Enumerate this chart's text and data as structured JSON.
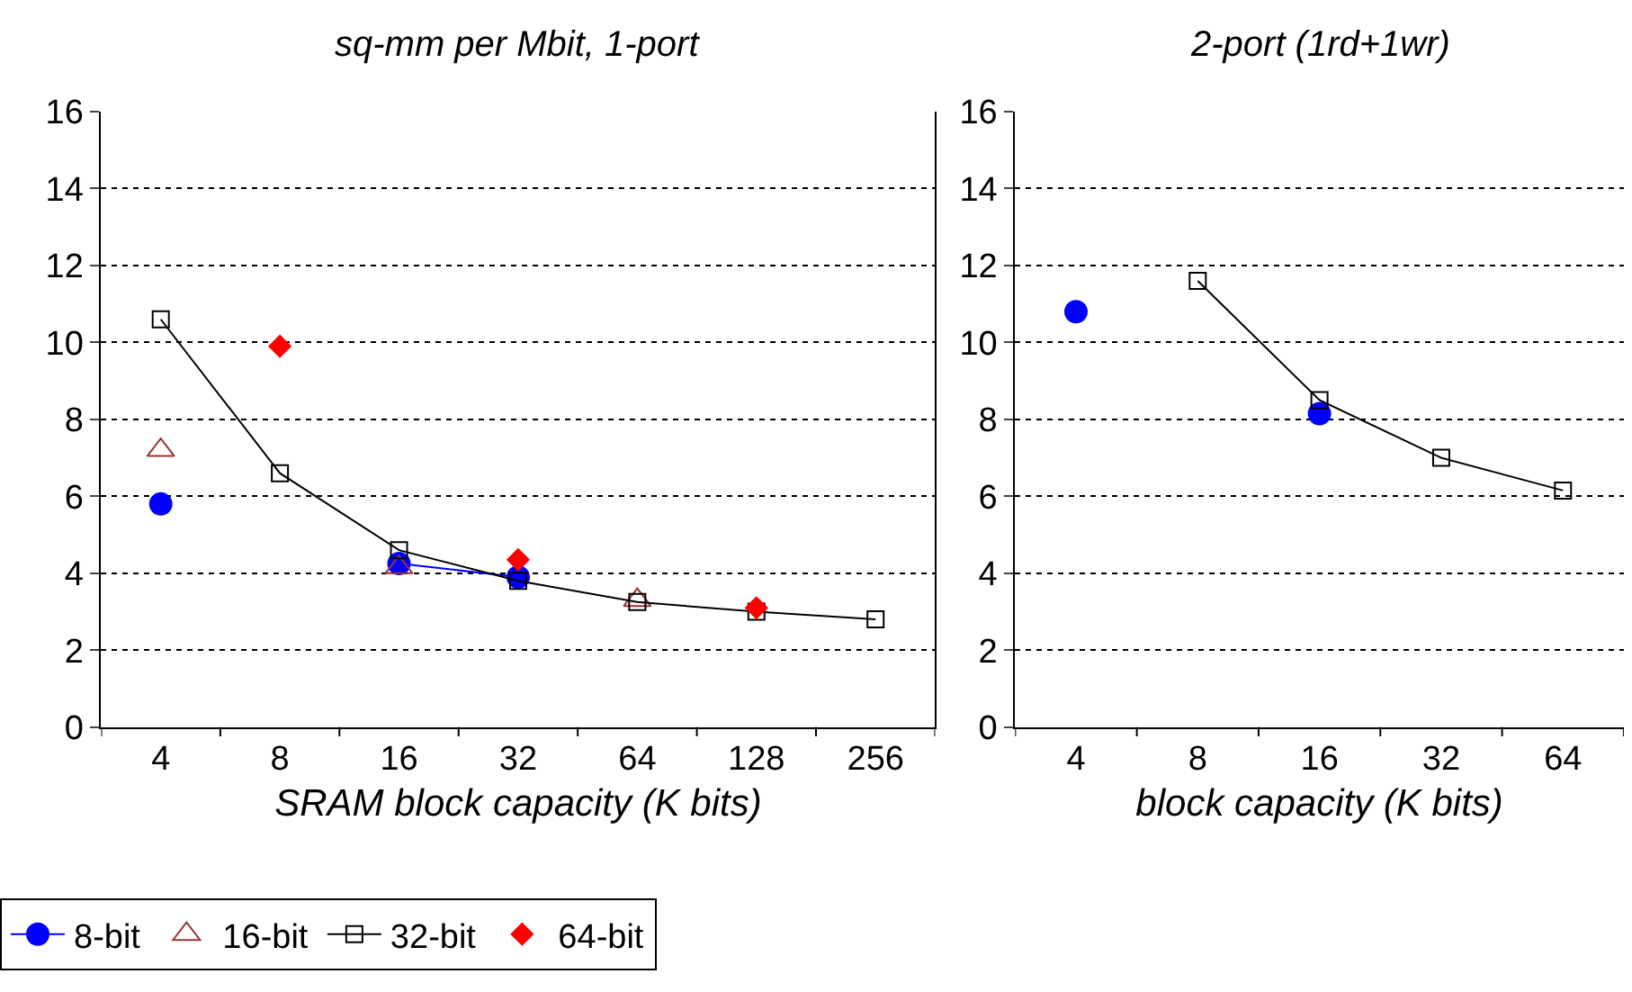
{
  "chart_data": [
    {
      "type": "line",
      "title": "sq-mm per Mbit, 1-port",
      "xlabel": "SRAM block capacity (K bits)",
      "categories": [
        "4",
        "8",
        "16",
        "32",
        "64",
        "128",
        "256"
      ],
      "ylim": [
        0,
        16
      ],
      "yticks": [
        0,
        2,
        4,
        6,
        8,
        10,
        12,
        14,
        16
      ],
      "grid": "y",
      "legend": "bottom left",
      "series": [
        {
          "name": "8-bit",
          "color": "#0000ff",
          "marker": "circle",
          "values": [
            5.8,
            null,
            4.25,
            3.9,
            null,
            null,
            null
          ]
        },
        {
          "name": "16-bit",
          "type": "scatter",
          "color": "#993333",
          "marker": "triangle",
          "values": [
            7.2,
            null,
            4.15,
            null,
            3.3,
            null,
            null
          ]
        },
        {
          "name": "32-bit",
          "color": "#000000",
          "marker": "square",
          "values": [
            10.6,
            6.6,
            4.6,
            3.8,
            3.25,
            3.0,
            2.8
          ]
        },
        {
          "name": "64-bit",
          "type": "scatter",
          "color": "#ff0000",
          "marker": "diamond",
          "values": [
            null,
            9.9,
            null,
            4.35,
            null,
            3.1,
            null
          ]
        }
      ]
    },
    {
      "type": "line",
      "title": "2-port (1rd+1wr)",
      "xlabel": "block capacity (K bits)",
      "categories": [
        "4",
        "8",
        "16",
        "32",
        "64"
      ],
      "ylim": [
        0,
        16
      ],
      "yticks": [
        0,
        2,
        4,
        6,
        8,
        10,
        12,
        14,
        16
      ],
      "grid": "y",
      "series": [
        {
          "type": "scatter",
          "color": "#0000ff",
          "marker": "circle",
          "values": [
            10.8,
            null,
            8.15,
            null,
            null
          ]
        },
        {
          "color": "#000000",
          "marker": "square",
          "values": [
            null,
            11.6,
            8.5,
            7.0,
            6.15
          ]
        }
      ]
    }
  ]
}
